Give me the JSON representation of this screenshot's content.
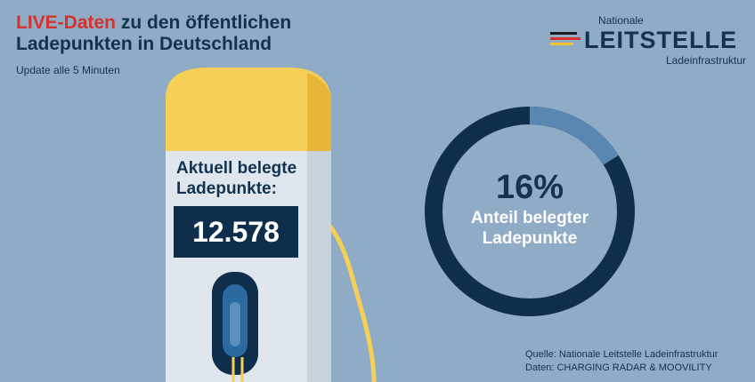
{
  "header": {
    "title_live": "LIVE-Daten",
    "title_rest": "zu den öffentlichen",
    "title_line2": "Ladepunkten in Deutschland",
    "subtitle": "Update alle 5 Minuten"
  },
  "logo": {
    "top": "Nationale",
    "main": "LEITSTELLE",
    "bottom": "Ladeinfrastruktur",
    "stripe_colors": [
      "#1a1a1a",
      "#d4322c",
      "#f2c230"
    ]
  },
  "charger": {
    "label": "Aktuell belegte Ladepunkte:",
    "count": "12.578"
  },
  "occupancy": {
    "percent_text": "16%",
    "percent_value": 16,
    "label": "Anteil belegter Ladepunkte"
  },
  "source": {
    "line1": "Quelle: Nationale Leitstelle Ladeinfrastruktur",
    "line2": "Daten: CHARGING RADAR & MOOVILITY"
  },
  "colors": {
    "background": "#8fabc6",
    "navy": "#123250",
    "accent_red": "#d4322c",
    "yellow": "#f6cf57",
    "ring_track": "#0f2e4c",
    "ring_fill": "#5a86b2"
  }
}
